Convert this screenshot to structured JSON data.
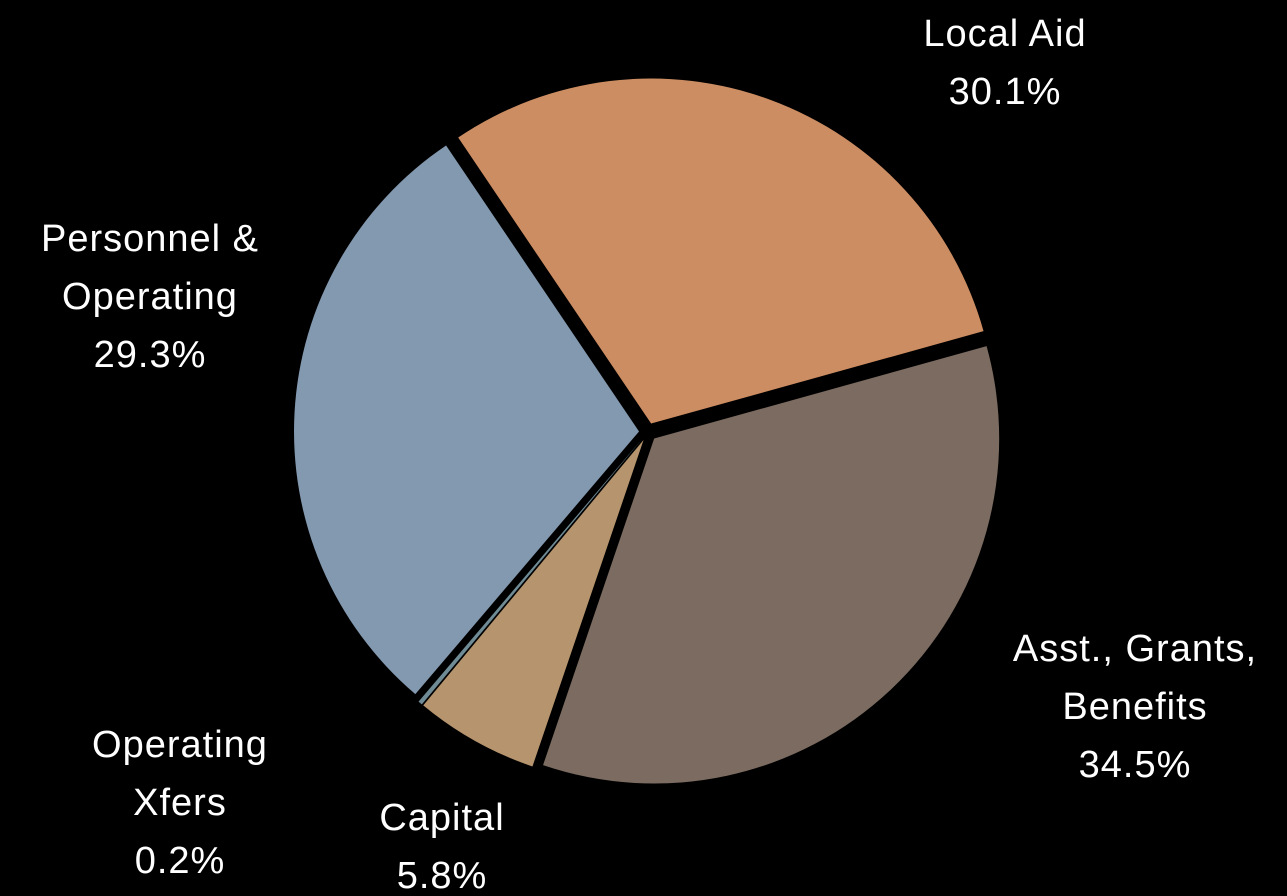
{
  "chart_data": {
    "type": "pie",
    "categories": [
      "Local Aid",
      "Asst., Grants, Benefits",
      "Capital",
      "Operating Xfers",
      "Personnel & Operating"
    ],
    "values": [
      30.1,
      34.5,
      5.8,
      0.2,
      29.3
    ],
    "value_labels": [
      "30.1%",
      "34.5%",
      "5.8%",
      "0.2%",
      "29.3%"
    ],
    "colors": [
      "#cd8d62",
      "#7b6b60",
      "#b5946e",
      "#6f8c96",
      "#8399b0"
    ]
  }
}
